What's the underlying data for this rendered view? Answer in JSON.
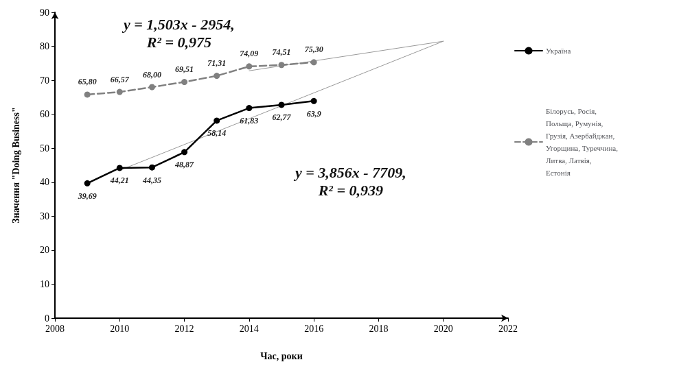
{
  "chart_data": {
    "type": "line",
    "xlabel": "Час, роки",
    "ylabel": "Значення \"Doing Business\"",
    "x": [
      2009,
      2010,
      2011,
      2012,
      2013,
      2014,
      2015,
      2016
    ],
    "series": [
      {
        "name": "Україна",
        "color": "#000000",
        "line_style": "solid",
        "values": [
          39.69,
          44.21,
          44.35,
          48.87,
          58.14,
          61.83,
          62.77,
          63.9
        ],
        "value_labels": [
          "39,69",
          "44,21",
          "44,35",
          "48,87",
          "58,14",
          "61,83",
          "62,77",
          "63,9"
        ]
      },
      {
        "name": "Білорусь, Росія, Польща, Румунія, Грузія, Азербайджан, Угорщина, Туреччина, Литва, Латвія, Естонія",
        "color": "#808080",
        "line_style": "dashed",
        "values": [
          65.8,
          66.57,
          68.0,
          69.51,
          71.31,
          74.09,
          74.51,
          75.3
        ],
        "value_labels": [
          "65,80",
          "66,57",
          "68,00",
          "69,51",
          "71,31",
          "74,09",
          "74,51",
          "75,30"
        ]
      },
      {
        "type": "line",
        "color": "#999999",
        "marker": "none",
        "x": [
          2010,
          2020
        ],
        "values": [
          43.5,
          81.5
        ]
      },
      {
        "type": "line",
        "color": "#999999",
        "marker": "none",
        "x": [
          2014,
          2020
        ],
        "values": [
          72.8,
          81.5
        ]
      }
    ],
    "annotations": [
      "y = 1,503x - 2954,\nR² = 0,975",
      "y = 3,856x - 7709,\nR² = 0,939"
    ],
    "xlim": [
      2008,
      2022
    ],
    "xticks": [
      2008,
      2010,
      2012,
      2014,
      2016,
      2018,
      2020,
      2022
    ],
    "ylim": [
      0,
      90
    ],
    "yticks": [
      0,
      10,
      20,
      30,
      40,
      50,
      60,
      70,
      80,
      90
    ],
    "marker": "circle",
    "grid": false,
    "legend": "right"
  }
}
